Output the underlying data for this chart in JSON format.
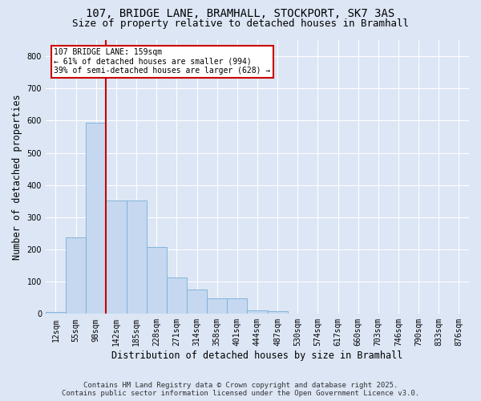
{
  "title_line1": "107, BRIDGE LANE, BRAMHALL, STOCKPORT, SK7 3AS",
  "title_line2": "Size of property relative to detached houses in Bramhall",
  "xlabel": "Distribution of detached houses by size in Bramhall",
  "ylabel": "Number of detached properties",
  "footnote_line1": "Contains HM Land Registry data © Crown copyright and database right 2025.",
  "footnote_line2": "Contains public sector information licensed under the Open Government Licence v3.0.",
  "bar_labels": [
    "12sqm",
    "55sqm",
    "98sqm",
    "142sqm",
    "185sqm",
    "228sqm",
    "271sqm",
    "314sqm",
    "358sqm",
    "401sqm",
    "444sqm",
    "487sqm",
    "530sqm",
    "574sqm",
    "617sqm",
    "660sqm",
    "703sqm",
    "746sqm",
    "790sqm",
    "833sqm",
    "876sqm"
  ],
  "bar_values": [
    5,
    237,
    594,
    352,
    352,
    207,
    113,
    75,
    47,
    47,
    10,
    8,
    0,
    0,
    0,
    0,
    0,
    0,
    0,
    0,
    0
  ],
  "bar_color": "#c5d8f0",
  "bar_edgecolor": "#7aafd4",
  "vline_x": 2.5,
  "vline_color": "#cc0000",
  "annotation_text": "107 BRIDGE LANE: 159sqm\n← 61% of detached houses are smaller (994)\n39% of semi-detached houses are larger (628) →",
  "annotation_box_color": "#cc0000",
  "ylim": [
    0,
    850
  ],
  "yticks": [
    0,
    100,
    200,
    300,
    400,
    500,
    600,
    700,
    800
  ],
  "background_color": "#dce6f5",
  "plot_bg_color": "#dce6f5",
  "grid_color": "#ffffff",
  "title_fontsize": 10,
  "subtitle_fontsize": 9,
  "axis_label_fontsize": 8.5,
  "tick_fontsize": 7,
  "footnote_fontsize": 6.5
}
